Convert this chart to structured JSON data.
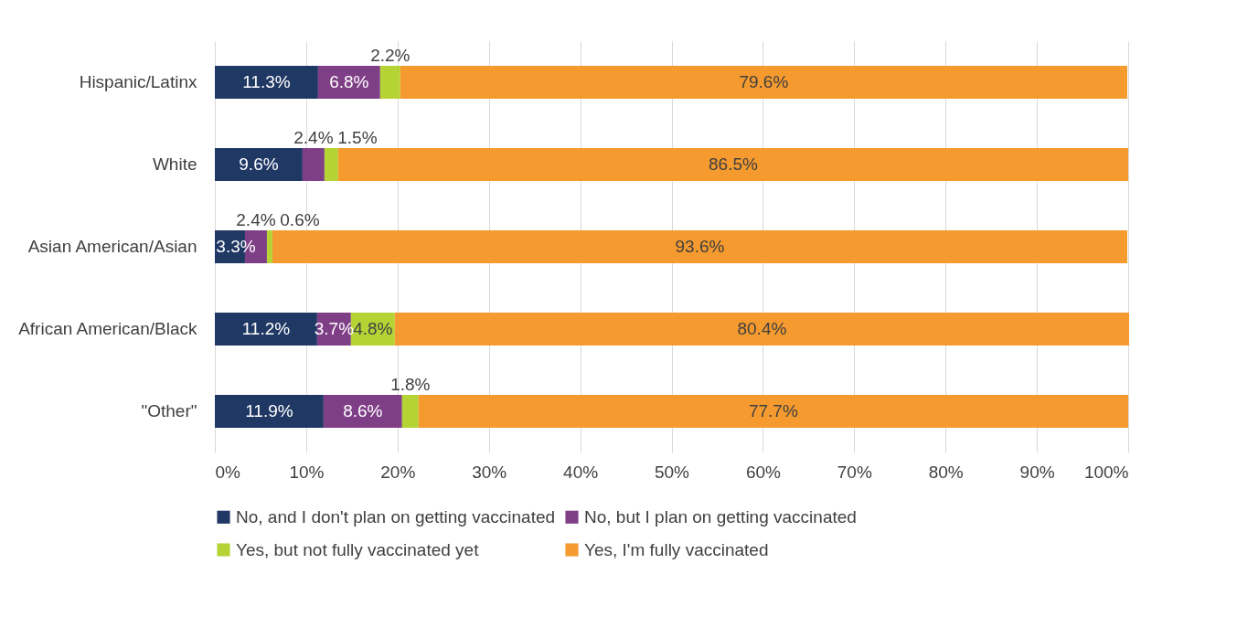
{
  "chart_data": {
    "type": "bar",
    "orientation": "horizontal",
    "stacked": true,
    "grid": "x",
    "legend": "bottom",
    "categories": [
      "Hispanic/Latinx",
      "White",
      "Asian American/Asian",
      "African American/Black",
      "\"Other\""
    ],
    "xlim": [
      0,
      100.1
    ],
    "xticks": [
      {
        "value": 0,
        "label": "0%"
      },
      {
        "value": 10,
        "label": "10%"
      },
      {
        "value": 20,
        "label": "20%"
      },
      {
        "value": 30,
        "label": "30%"
      },
      {
        "value": 40,
        "label": "40%"
      },
      {
        "value": 50,
        "label": "50%"
      },
      {
        "value": 60,
        "label": "60%"
      },
      {
        "value": 70,
        "label": "70%"
      },
      {
        "value": 80,
        "label": "80%"
      },
      {
        "value": 90,
        "label": "90%"
      },
      {
        "value": 100,
        "label": "100%"
      }
    ],
    "series": [
      {
        "name": "No, and I don't plan on getting vaccinated",
        "color": "#203864",
        "values": [
          11.3,
          9.6,
          3.3,
          11.2,
          11.9
        ],
        "value_labels": [
          "11.3%",
          "9.6%",
          "3.3%",
          "11.2%",
          "11.9%"
        ]
      },
      {
        "name": "No, but I plan on getting vaccinated",
        "color": "#7f3f86",
        "values": [
          6.8,
          2.4,
          2.4,
          3.7,
          8.6
        ],
        "value_labels": [
          "6.8%",
          "2.4%",
          "2.4%",
          "3.7%",
          "8.6%"
        ]
      },
      {
        "name": "Yes, but not fully vaccinated yet",
        "color": "#b5d334",
        "values": [
          2.2,
          1.5,
          0.6,
          4.8,
          1.8
        ],
        "value_labels": [
          "2.2%",
          "1.5%",
          "0.6%",
          "4.8%",
          "1.8%"
        ]
      },
      {
        "name": "Yes, I'm fully vaccinated",
        "color": "#f59a2f",
        "values": [
          79.6,
          86.5,
          93.6,
          80.4,
          77.7
        ],
        "value_labels": [
          "79.6%",
          "86.5%",
          "93.6%",
          "80.4%",
          "77.7%"
        ]
      }
    ]
  }
}
